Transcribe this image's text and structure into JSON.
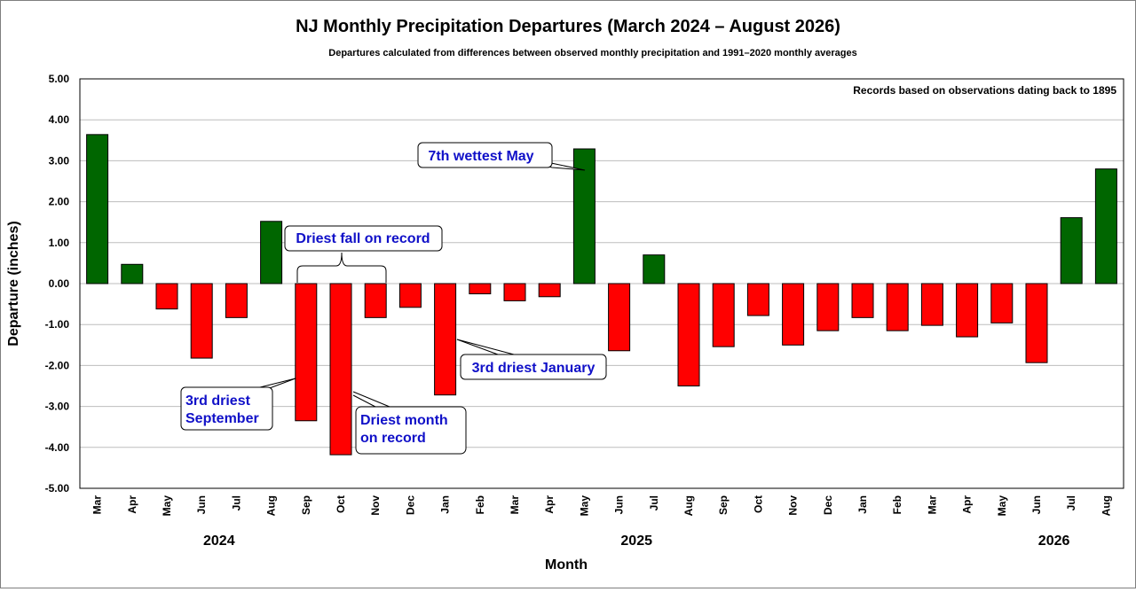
{
  "chart_data": {
    "type": "bar",
    "title": "NJ Monthly Precipitation Departures (March 2024 – August 2026)",
    "subtitle": "Departures calculated from differences between observed monthly precipitation and 1991–2020 monthly averages",
    "xlabel": "Month",
    "ylabel": "Departure (inches)",
    "ylim": [
      -5,
      5
    ],
    "yticks": [
      "5.00",
      "4.00",
      "3.00",
      "2.00",
      "1.00",
      "0.00",
      "-1.00",
      "-2.00",
      "-3.00",
      "-4.00",
      "-5.00"
    ],
    "ytick_values": [
      5,
      4,
      3,
      2,
      1,
      0,
      -1,
      -2,
      -3,
      -4,
      -5
    ],
    "grid": true,
    "categories": [
      "Mar",
      "Apr",
      "May",
      "Jun",
      "Jul",
      "Aug",
      "Sep",
      "Oct",
      "Nov",
      "Dec",
      "Jan",
      "Feb",
      "Mar",
      "Apr",
      "May",
      "Jun",
      "Jul",
      "Aug",
      "Sep",
      "Oct",
      "Nov",
      "Dec",
      "Jan",
      "Feb",
      "Mar",
      "Apr",
      "May",
      "Jun",
      "Jul",
      "Aug"
    ],
    "values": [
      3.64,
      0.47,
      -0.62,
      -1.82,
      -0.83,
      1.52,
      -3.35,
      -4.18,
      -0.83,
      -0.58,
      -2.72,
      -0.25,
      -0.42,
      -0.32,
      3.29,
      -1.64,
      0.7,
      -2.5,
      -1.54,
      -0.78,
      -1.5,
      -1.15,
      -0.83,
      -1.15,
      -1.02,
      -1.3,
      -0.96,
      -1.93,
      1.61,
      2.8
    ],
    "year_labels": [
      {
        "label": "2024",
        "index": 3.5
      },
      {
        "label": "2025",
        "index": 15.5
      },
      {
        "label": "2026",
        "index": 27.5
      }
    ],
    "colors": {
      "positive": "#006600",
      "negative": "#ff0000"
    },
    "note": "Records based on observations dating back to 1895",
    "annotations": {
      "wettest_may": "7th wettest May",
      "driest_fall": "Driest fall on record",
      "sep_line1": "3rd driest",
      "sep_line2": "September",
      "oct_line1": "Driest month",
      "oct_line2": "on record",
      "jan": "3rd driest January"
    }
  }
}
